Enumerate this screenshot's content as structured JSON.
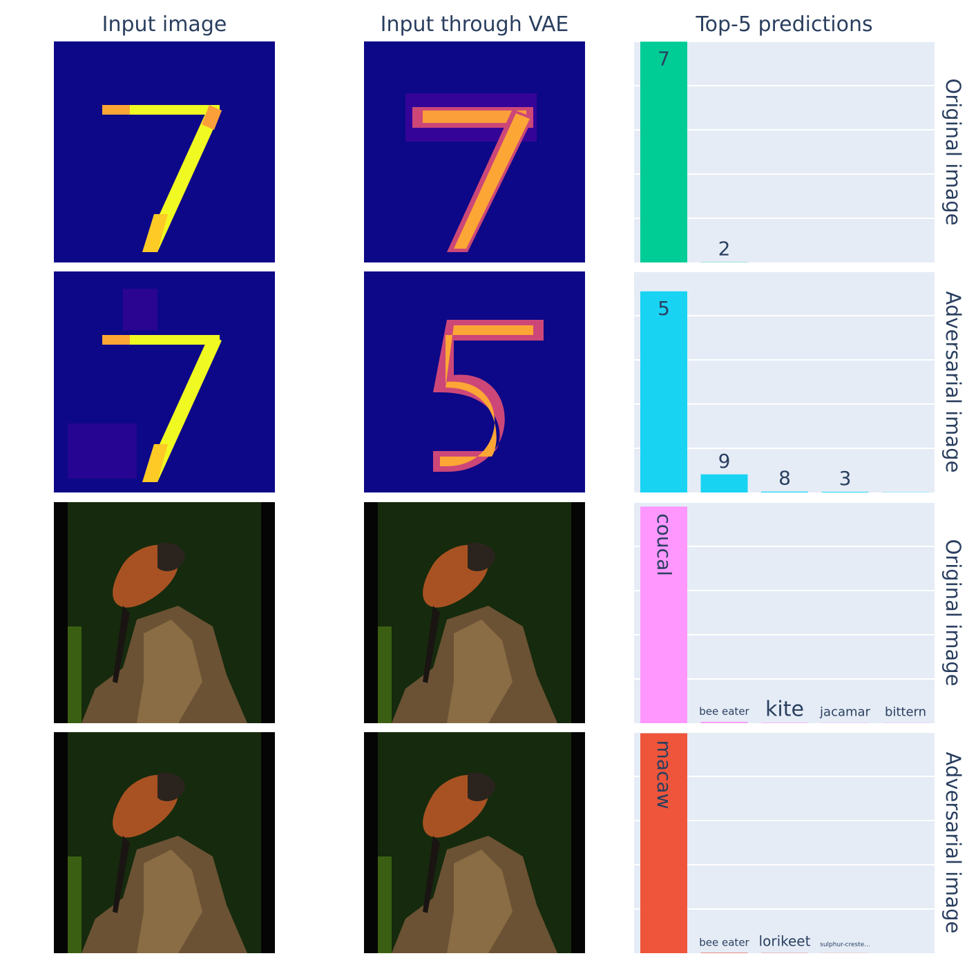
{
  "column_titles": [
    "Input image",
    "Input through VAE",
    "Top-5 predictions"
  ],
  "row_labels": [
    "Original image",
    "Adversarial image",
    "Original image",
    "Adversarial image"
  ],
  "colors": {
    "plot_bg": "#e5ecf6",
    "grid": "#ffffff",
    "text": "#2a3f5f",
    "mnist_bg": "#0d0887",
    "row1_bar": "#00cc96",
    "row2_bar": "#19d3f3",
    "row3_bar": "#ff97ff",
    "row4_bar": "#ef553b"
  },
  "chart_data": [
    {
      "type": "bar",
      "row": "Original image",
      "categories": [
        "7",
        "2",
        "",
        "",
        ""
      ],
      "values": [
        0.999,
        0.001,
        0.0,
        0.0,
        0.0
      ],
      "ylim": [
        0,
        1
      ],
      "grid": true
    },
    {
      "type": "bar",
      "row": "Adversarial image",
      "categories": [
        "5",
        "9",
        "8",
        "3",
        ""
      ],
      "values": [
        0.91,
        0.082,
        0.004,
        0.003,
        0.001
      ],
      "ylim": [
        0,
        1
      ],
      "grid": true
    },
    {
      "type": "bar",
      "row": "Original image",
      "categories": [
        "coucal",
        "bee eater",
        "kite",
        "jacamar",
        "bittern"
      ],
      "values": [
        0.98,
        0.006,
        0.002,
        0.001,
        0.001
      ],
      "ylim": [
        0,
        1
      ],
      "grid": true
    },
    {
      "type": "bar",
      "row": "Adversarial image",
      "categories": [
        "macaw",
        "bee eater",
        "lorikeet",
        "sulphur-creste...",
        ""
      ],
      "values": [
        0.995,
        0.002,
        0.001,
        0.0005,
        0.0
      ],
      "ylim": [
        0,
        1
      ],
      "grid": true
    }
  ]
}
